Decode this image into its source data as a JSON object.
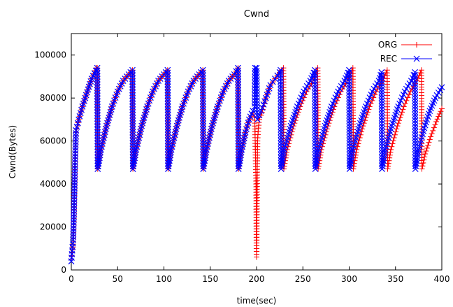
{
  "chart_data": {
    "type": "line",
    "title": "Cwnd",
    "xlabel": "time(sec)",
    "ylabel": "Cwnd(Bytes)",
    "xlim": [
      0,
      400
    ],
    "ylim": [
      0,
      110000
    ],
    "x_ticks": [
      0,
      50,
      100,
      150,
      200,
      250,
      300,
      350,
      400
    ],
    "y_ticks": [
      0,
      20000,
      40000,
      60000,
      80000,
      100000
    ],
    "x_tick_labels": [
      "0",
      "50",
      "100",
      "150",
      "200",
      "250",
      "300",
      "350",
      "400"
    ],
    "y_tick_labels": [
      "0",
      "20000",
      "40000",
      "60000",
      "80000",
      "100000"
    ],
    "grid": false,
    "legend_position": "top-right",
    "series": [
      {
        "name": "ORG",
        "color": "#ff0000",
        "marker": "plus",
        "x": [
          0,
          1,
          2,
          3,
          4,
          5,
          8,
          12,
          18,
          22,
          27,
          28,
          28.5,
          32,
          38,
          44,
          50,
          56,
          62,
          66,
          66.5,
          70,
          76,
          82,
          88,
          94,
          100,
          104,
          104.5,
          108,
          114,
          120,
          126,
          132,
          138,
          142,
          142.5,
          146,
          152,
          158,
          164,
          170,
          176,
          180,
          180.5,
          184,
          188,
          192,
          196,
          198,
          199.5,
          200,
          201,
          202,
          203,
          205,
          210,
          215,
          220,
          225,
          229,
          229.5,
          233,
          240,
          247,
          254,
          261,
          266,
          266.5,
          270,
          277,
          284,
          291,
          298,
          304,
          304.5,
          308,
          315,
          322,
          329,
          336,
          341,
          341.5,
          345,
          352,
          359,
          366,
          373,
          378,
          378.5,
          382,
          388,
          394,
          400
        ],
        "y": [
          5000,
          8000,
          12000,
          28000,
          48000,
          64000,
          70000,
          76000,
          84000,
          89000,
          94000,
          94000,
          47000,
          56000,
          67000,
          76000,
          83000,
          88000,
          91000,
          93000,
          47000,
          56000,
          67000,
          76000,
          83000,
          88000,
          91000,
          93000,
          47000,
          56000,
          67000,
          76000,
          83000,
          88000,
          91000,
          93000,
          47000,
          56000,
          67000,
          76000,
          83000,
          88000,
          91000,
          94000,
          47000,
          56000,
          64000,
          70000,
          73000,
          71000,
          40000,
          6000,
          60000,
          66000,
          70000,
          72000,
          80000,
          86000,
          89000,
          92000,
          94000,
          47000,
          56000,
          67000,
          76000,
          83000,
          88000,
          94000,
          47000,
          56000,
          67000,
          76000,
          83000,
          88000,
          94000,
          47000,
          56000,
          67000,
          76000,
          83000,
          88000,
          93000,
          47000,
          56000,
          67000,
          76000,
          83000,
          88000,
          93000,
          47000,
          54000,
          62000,
          69000,
          75000
        ]
      },
      {
        "name": "REC",
        "color": "#0000ff",
        "marker": "cross",
        "x": [
          0,
          1,
          2,
          3,
          4,
          5,
          8,
          12,
          18,
          22,
          28,
          28.5,
          32,
          38,
          44,
          50,
          56,
          62,
          66,
          66.5,
          70,
          76,
          82,
          88,
          94,
          100,
          104,
          104.5,
          108,
          114,
          120,
          126,
          132,
          138,
          142,
          142.5,
          146,
          152,
          158,
          164,
          170,
          176,
          180,
          180.5,
          184,
          188,
          192,
          196,
          198,
          198.5,
          200,
          200.5,
          201,
          203,
          205,
          210,
          215,
          220,
          225,
          226,
          226.5,
          230,
          237,
          244,
          251,
          258,
          263,
          263.5,
          267,
          274,
          281,
          288,
          295,
          300,
          300.5,
          304,
          311,
          318,
          325,
          332,
          335,
          335.5,
          339,
          346,
          353,
          360,
          367,
          371,
          371.5,
          375,
          381,
          387,
          393,
          400
        ],
        "y": [
          4000,
          9000,
          14000,
          30000,
          50000,
          65000,
          70000,
          76000,
          84000,
          89000,
          94000,
          47000,
          56000,
          67000,
          76000,
          83000,
          88000,
          91000,
          93000,
          47000,
          56000,
          67000,
          76000,
          83000,
          88000,
          91000,
          93000,
          47000,
          56000,
          67000,
          76000,
          83000,
          88000,
          91000,
          93000,
          47000,
          56000,
          67000,
          76000,
          83000,
          88000,
          91000,
          94000,
          47000,
          56000,
          64000,
          70000,
          74000,
          76000,
          94000,
          94000,
          72000,
          70000,
          72000,
          74000,
          80000,
          86000,
          89000,
          92000,
          93000,
          47000,
          56000,
          67000,
          76000,
          83000,
          88000,
          93000,
          47000,
          56000,
          67000,
          76000,
          83000,
          88000,
          93000,
          47000,
          56000,
          67000,
          76000,
          83000,
          88000,
          92000,
          47000,
          56000,
          67000,
          76000,
          83000,
          88000,
          92000,
          47000,
          56000,
          66000,
          74000,
          80000,
          85000
        ]
      }
    ]
  }
}
